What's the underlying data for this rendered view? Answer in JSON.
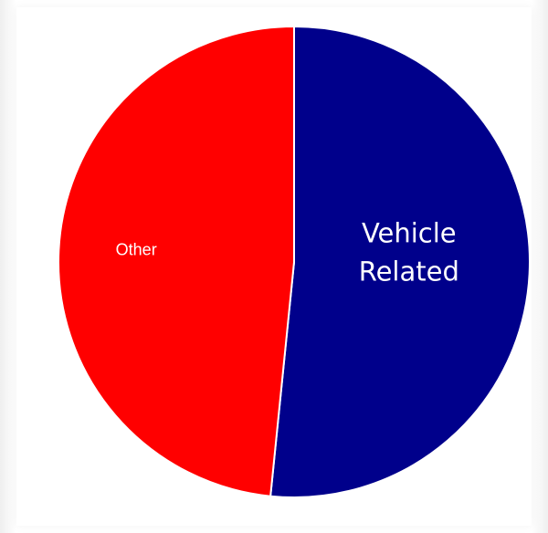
{
  "chart_data": {
    "type": "pie",
    "series": [
      {
        "slices": [
          {
            "label": "Vehicle Related",
            "label_lines": [
              "Vehicle",
              "Related"
            ],
            "value": 51.6,
            "color": "#00008b"
          },
          {
            "label": "Other",
            "label_lines": [
              "Other"
            ],
            "value": 48.4,
            "color": "#ff0000"
          }
        ]
      }
    ],
    "title": "",
    "legend": "none"
  }
}
